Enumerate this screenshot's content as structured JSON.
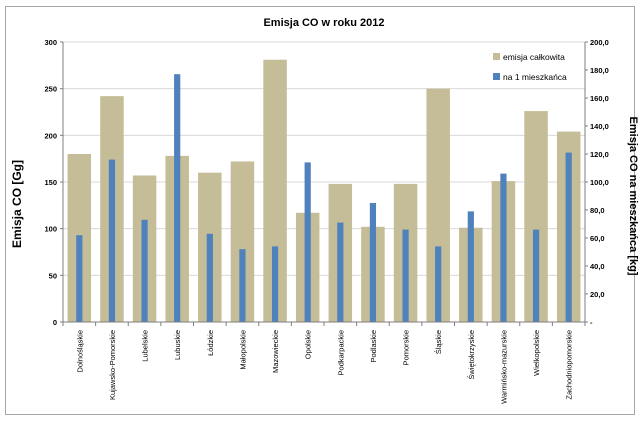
{
  "chart_data": {
    "type": "bar",
    "title": "Emisja CO w roku 2012",
    "ylabel": "Emisja CO [Gg]",
    "ylabel_right": "Emisja CO na mieszkańca [kg]",
    "categories": [
      "Dolnośląskie",
      "Kujawsko-Pomorskie",
      "Lubelskie",
      "Lubuskie",
      "Łódzkie",
      "Małopolskie",
      "Mazowieckie",
      "Opolskie",
      "Podkarpackie",
      "Podlaskie",
      "Pomorskie",
      "Śląskie",
      "Świętokrzyskie",
      "Warmińsko-mazurskie",
      "Wielkopolskie",
      "Zachodniopomorskie"
    ],
    "ylim": [
      0,
      300
    ],
    "ylim_right": [
      0,
      200
    ],
    "yticks": [
      "0",
      "50",
      "100",
      "150",
      "200",
      "250",
      "300"
    ],
    "yticks_right": [
      "-",
      "20,0",
      "40,0",
      "60,0",
      "80,0",
      "100,0",
      "120,0",
      "140,0",
      "160,0",
      "180,0",
      "200,0"
    ],
    "series": [
      {
        "name": "emisja całkowita",
        "axis": "left",
        "color": "#c4bd97",
        "values": [
          180,
          242,
          157,
          178,
          160,
          172,
          281,
          117,
          148,
          102,
          148,
          250,
          101,
          151,
          226,
          204
        ]
      },
      {
        "name": "na 1 mieszkańca",
        "axis": "right",
        "color": "#4f81bd",
        "values": [
          62,
          116,
          73,
          177,
          63,
          52,
          54,
          114,
          71,
          85,
          66,
          54,
          79,
          106,
          66,
          121
        ]
      }
    ],
    "grid": true,
    "legend": "top-right"
  }
}
